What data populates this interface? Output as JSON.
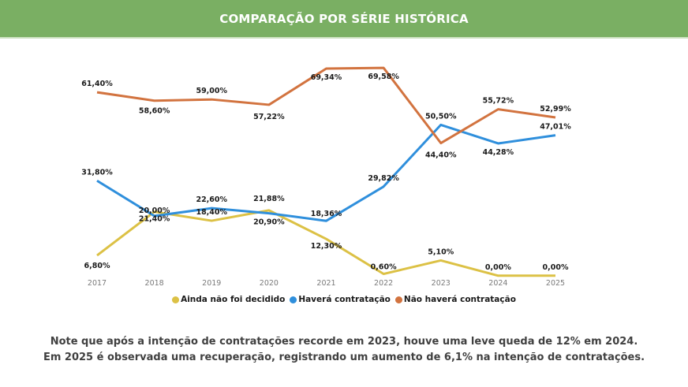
{
  "header": {
    "title": "COMPARAÇÃO POR SÉRIE HISTÓRICA"
  },
  "colors": {
    "header_bg": "#7aaf63",
    "yellow": "#dcc145",
    "blue": "#2f8fdc",
    "orange": "#d2733f"
  },
  "chart_data": {
    "type": "line",
    "title": "COMPARAÇÃO POR SÉRIE HISTÓRICA",
    "categories": [
      "2017",
      "2018",
      "2019",
      "2020",
      "2021",
      "2022",
      "2023",
      "2024",
      "2025"
    ],
    "ylim": [
      0,
      70
    ],
    "grid": false,
    "legend": "bottom",
    "series": [
      {
        "name": "Ainda não foi decidido",
        "color": "#dcc145",
        "values": [
          6.8,
          21.4,
          18.4,
          21.88,
          12.3,
          0.6,
          5.1,
          0.0,
          0.0
        ],
        "labels": [
          "6,80%",
          "21,40%",
          "18,40%",
          "21,88%",
          "12,30%",
          "0,60%",
          "5,10%",
          "0,00%",
          "0,00%"
        ]
      },
      {
        "name": "Haverá contratação",
        "color": "#2f8fdc",
        "values": [
          31.8,
          20.0,
          22.6,
          20.9,
          18.36,
          29.82,
          50.5,
          44.28,
          47.01
        ],
        "labels": [
          "31,80%",
          "20,00%",
          "22,60%",
          "20,90%",
          "18,36%",
          "29,82%",
          "50,50%",
          "44,28%",
          "47,01%"
        ]
      },
      {
        "name": "Não haverá contratação",
        "color": "#d2733f",
        "values": [
          61.4,
          58.6,
          59.0,
          57.22,
          69.34,
          69.58,
          44.4,
          55.72,
          52.99
        ],
        "labels": [
          "61,40%",
          "58,60%",
          "59,00%",
          "57,22%",
          "69,34%",
          "69,58%",
          "44,40%",
          "55,72%",
          "52,99%"
        ]
      }
    ]
  },
  "note": {
    "line1": "Note que após a intenção de contratações recorde em 2023, houve uma leve queda de 12% em 2024.",
    "line2": "Em 2025 é observada uma recuperação, registrando um aumento de 6,1% na intenção de contratações."
  }
}
